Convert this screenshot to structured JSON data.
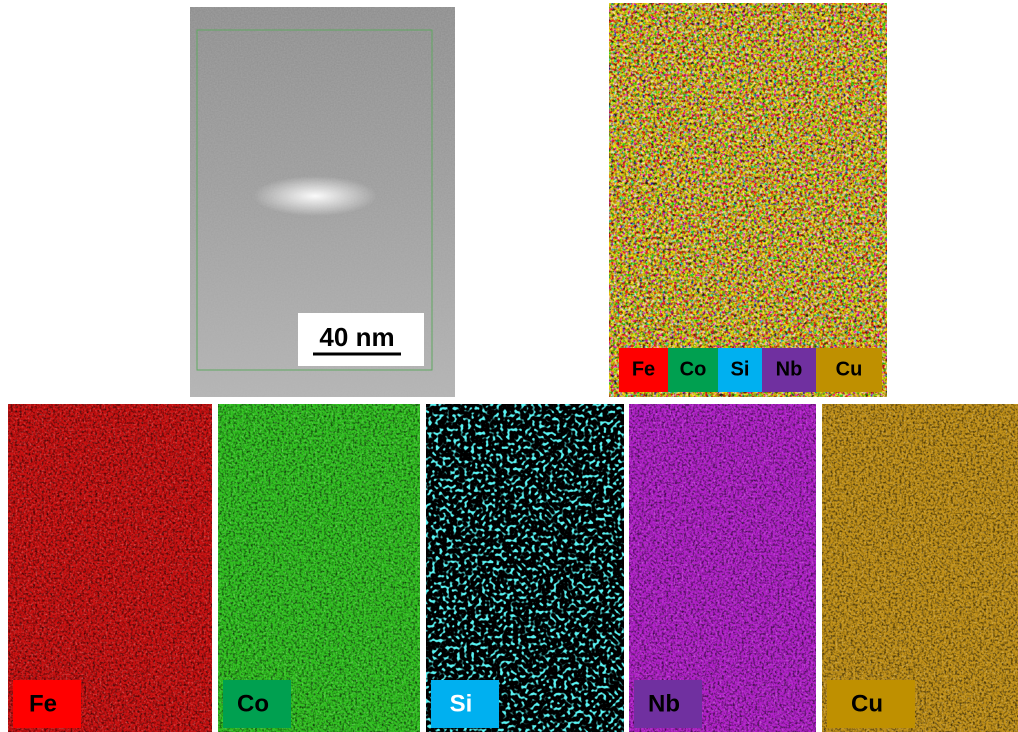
{
  "scale_bar": "40 nm",
  "composite_legend": [
    "Fe",
    "Co",
    "Si",
    "Nb",
    "Cu"
  ],
  "maps": [
    "Fe",
    "Co",
    "Si",
    "Nb",
    "Cu"
  ]
}
